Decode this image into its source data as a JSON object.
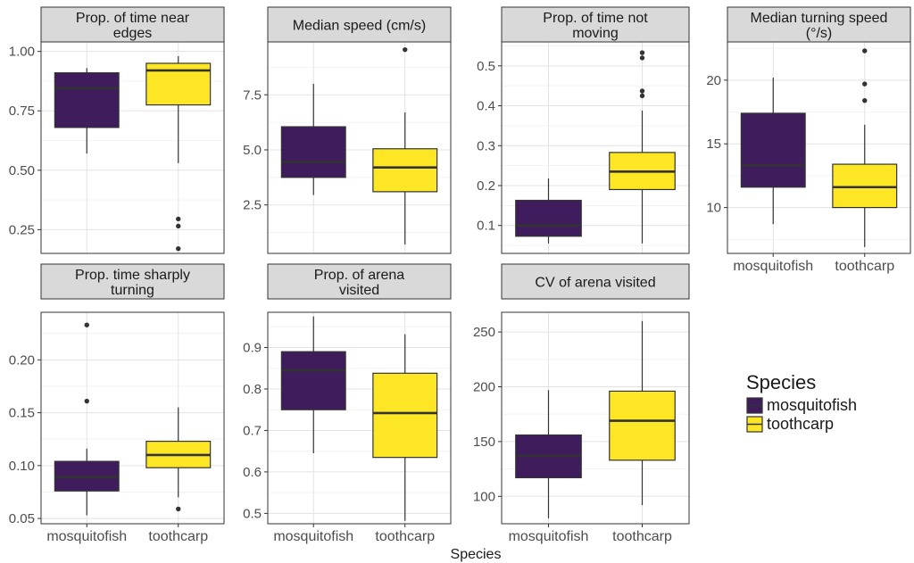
{
  "figure": {
    "xlabel": "Species",
    "legend": {
      "title": "Species",
      "placement": "right",
      "items": [
        {
          "label": "mosquitofish",
          "color": "#3f1c5c"
        },
        {
          "label": "toothcarp",
          "color": "#fde725"
        }
      ]
    }
  },
  "chart_data": [
    {
      "type": "boxplot",
      "title": "Prop. of time near\nedges",
      "categories": [
        "mosquitofish",
        "toothcarp"
      ],
      "show_x_ticks": false,
      "ylim": [
        0.15,
        1.04
      ],
      "yticks": [
        {
          "v": 0.25,
          "l": "0.25"
        },
        {
          "v": 0.5,
          "l": "0.50"
        },
        {
          "v": 0.75,
          "l": "0.75"
        },
        {
          "v": 1.0,
          "l": "1.00"
        }
      ],
      "boxes": [
        {
          "name": "mosquitofish",
          "color": "#3f1c5c",
          "whisker_low": 0.57,
          "q1": 0.68,
          "median": 0.845,
          "q3": 0.91,
          "whisker_high": 0.93,
          "outliers": []
        },
        {
          "name": "toothcarp",
          "color": "#fde725",
          "whisker_low": 0.53,
          "q1": 0.775,
          "median": 0.92,
          "q3": 0.95,
          "whisker_high": 0.98,
          "outliers": [
            0.295,
            0.265,
            0.17
          ]
        }
      ]
    },
    {
      "type": "boxplot",
      "title": "Median speed (cm/s)",
      "categories": [
        "mosquitofish",
        "toothcarp"
      ],
      "show_x_ticks": false,
      "ylim": [
        0.3,
        9.9
      ],
      "yticks": [
        {
          "v": 2.5,
          "l": "2.5"
        },
        {
          "v": 5.0,
          "l": "5.0"
        },
        {
          "v": 7.5,
          "l": "7.5"
        }
      ],
      "boxes": [
        {
          "name": "mosquitofish",
          "color": "#3f1c5c",
          "whisker_low": 2.95,
          "q1": 3.75,
          "median": 4.45,
          "q3": 6.05,
          "whisker_high": 8.0,
          "outliers": []
        },
        {
          "name": "toothcarp",
          "color": "#fde725",
          "whisker_low": 0.7,
          "q1": 3.1,
          "median": 4.2,
          "q3": 5.05,
          "whisker_high": 6.7,
          "outliers": [
            9.55
          ]
        }
      ]
    },
    {
      "type": "boxplot",
      "title": "Prop. of time not\nmoving",
      "categories": [
        "mosquitofish",
        "toothcarp"
      ],
      "show_x_ticks": false,
      "ylim": [
        0.03,
        0.56
      ],
      "yticks": [
        {
          "v": 0.1,
          "l": "0.1"
        },
        {
          "v": 0.2,
          "l": "0.2"
        },
        {
          "v": 0.3,
          "l": "0.3"
        },
        {
          "v": 0.4,
          "l": "0.4"
        },
        {
          "v": 0.5,
          "l": "0.5"
        }
      ],
      "boxes": [
        {
          "name": "mosquitofish",
          "color": "#3f1c5c",
          "whisker_low": 0.055,
          "q1": 0.073,
          "median": 0.1,
          "q3": 0.163,
          "whisker_high": 0.218,
          "outliers": []
        },
        {
          "name": "toothcarp",
          "color": "#fde725",
          "whisker_low": 0.055,
          "q1": 0.19,
          "median": 0.235,
          "q3": 0.283,
          "whisker_high": 0.388,
          "outliers": [
            0.437,
            0.425,
            0.52,
            0.533
          ]
        }
      ]
    },
    {
      "type": "boxplot",
      "title": "Median turning speed\n(°/s)",
      "categories": [
        "mosquitofish",
        "toothcarp"
      ],
      "show_x_ticks": true,
      "ylim": [
        6.4,
        23.0
      ],
      "yticks": [
        {
          "v": 10,
          "l": "10"
        },
        {
          "v": 15,
          "l": "15"
        },
        {
          "v": 20,
          "l": "20"
        }
      ],
      "boxes": [
        {
          "name": "mosquitofish",
          "color": "#3f1c5c",
          "whisker_low": 8.7,
          "q1": 11.6,
          "median": 13.3,
          "q3": 17.4,
          "whisker_high": 20.2,
          "outliers": []
        },
        {
          "name": "toothcarp",
          "color": "#fde725",
          "whisker_low": 6.9,
          "q1": 10.0,
          "median": 11.6,
          "q3": 13.4,
          "whisker_high": 16.5,
          "outliers": [
            18.4,
            19.7,
            22.3
          ]
        }
      ]
    },
    {
      "type": "boxplot",
      "title": "Prop. time sharply\nturning",
      "categories": [
        "mosquitofish",
        "toothcarp"
      ],
      "show_x_ticks": true,
      "ylim": [
        0.045,
        0.245
      ],
      "yticks": [
        {
          "v": 0.05,
          "l": "0.05"
        },
        {
          "v": 0.1,
          "l": "0.10"
        },
        {
          "v": 0.15,
          "l": "0.15"
        },
        {
          "v": 0.2,
          "l": "0.20"
        }
      ],
      "boxes": [
        {
          "name": "mosquitofish",
          "color": "#3f1c5c",
          "whisker_low": 0.053,
          "q1": 0.076,
          "median": 0.089,
          "q3": 0.104,
          "whisker_high": 0.116,
          "outliers": [
            0.161,
            0.233
          ]
        },
        {
          "name": "toothcarp",
          "color": "#fde725",
          "whisker_low": 0.07,
          "q1": 0.098,
          "median": 0.11,
          "q3": 0.123,
          "whisker_high": 0.155,
          "outliers": [
            0.059
          ]
        }
      ]
    },
    {
      "type": "boxplot",
      "title": "Prop. of arena\nvisited",
      "categories": [
        "mosquitofish",
        "toothcarp"
      ],
      "show_x_ticks": true,
      "ylim": [
        0.475,
        0.985
      ],
      "yticks": [
        {
          "v": 0.5,
          "l": "0.5"
        },
        {
          "v": 0.6,
          "l": "0.6"
        },
        {
          "v": 0.7,
          "l": "0.7"
        },
        {
          "v": 0.8,
          "l": "0.8"
        },
        {
          "v": 0.9,
          "l": "0.9"
        }
      ],
      "boxes": [
        {
          "name": "mosquitofish",
          "color": "#3f1c5c",
          "whisker_low": 0.645,
          "q1": 0.75,
          "median": 0.845,
          "q3": 0.89,
          "whisker_high": 0.975,
          "outliers": []
        },
        {
          "name": "toothcarp",
          "color": "#fde725",
          "whisker_low": 0.482,
          "q1": 0.635,
          "median": 0.742,
          "q3": 0.838,
          "whisker_high": 0.932,
          "outliers": []
        }
      ]
    },
    {
      "type": "boxplot",
      "title": "CV of arena visited",
      "categories": [
        "mosquitofish",
        "toothcarp"
      ],
      "show_x_ticks": true,
      "ylim": [
        75,
        268
      ],
      "yticks": [
        {
          "v": 100,
          "l": "100"
        },
        {
          "v": 150,
          "l": "150"
        },
        {
          "v": 200,
          "l": "200"
        },
        {
          "v": 250,
          "l": "250"
        }
      ],
      "boxes": [
        {
          "name": "mosquitofish",
          "color": "#3f1c5c",
          "whisker_low": 80,
          "q1": 117,
          "median": 137,
          "q3": 156,
          "whisker_high": 197,
          "outliers": []
        },
        {
          "name": "toothcarp",
          "color": "#fde725",
          "whisker_low": 92,
          "q1": 133,
          "median": 169,
          "q3": 196,
          "whisker_high": 260,
          "outliers": []
        }
      ]
    }
  ]
}
